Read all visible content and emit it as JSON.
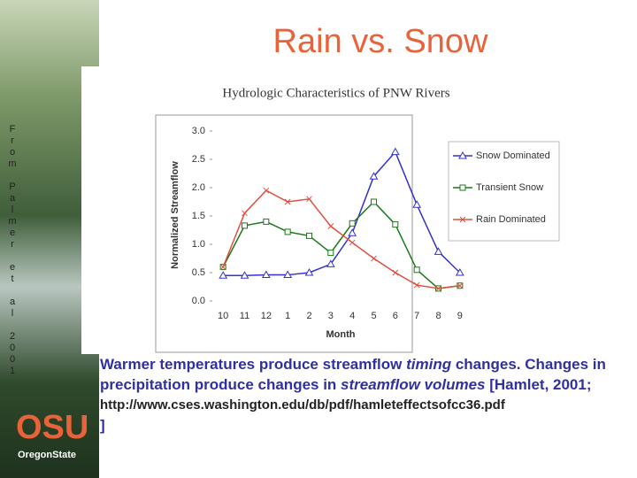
{
  "slide": {
    "title": "Rain vs. Snow",
    "side_text": "From Palmer et al 2001",
    "logo": {
      "mark": "OSU",
      "name": "OregonState"
    },
    "body": {
      "parts": [
        "Warmer temperatures produce streamflow ",
        "timing",
        " changes. Changes in precipitation produce changes in ",
        "streamflow volumes",
        " [Hamlet, 2001;"
      ],
      "url": "http://www.cses.washington.edu/db/pdf/hamleteffectsofcc36.pdf",
      "close": "]"
    }
  },
  "chart_data": {
    "type": "line",
    "title": "Hydrologic Characteristics of PNW Rivers",
    "x_label": "Month",
    "y_label": "Normalized Streamflow",
    "categories": [
      "10",
      "11",
      "12",
      "1",
      "2",
      "3",
      "4",
      "5",
      "6",
      "7",
      "8",
      "9"
    ],
    "ylim": [
      0,
      3
    ],
    "yticks": [
      {
        "value": 0,
        "label": "0.0"
      },
      {
        "value": 0.5,
        "label": "0.5"
      },
      {
        "value": 1,
        "label": "1.0"
      },
      {
        "value": 1.5,
        "label": "1.5"
      },
      {
        "value": 2,
        "label": "2.0"
      },
      {
        "value": 2.5,
        "label": "2.5"
      },
      {
        "value": 3,
        "label": "3.0"
      }
    ],
    "series": [
      {
        "name": "Snow Dominated",
        "color": "#3333cc",
        "marker": "triangle",
        "values": [
          0.45,
          0.45,
          0.46,
          0.46,
          0.5,
          0.65,
          1.2,
          2.2,
          2.63,
          1.7,
          0.87,
          0.5
        ]
      },
      {
        "name": "Transient Snow",
        "color": "#1a7a1a",
        "marker": "square",
        "values": [
          0.6,
          1.33,
          1.4,
          1.22,
          1.15,
          0.85,
          1.37,
          1.75,
          1.35,
          0.55,
          0.22,
          0.27
        ]
      },
      {
        "name": "Rain Dominated",
        "color": "#e05040",
        "marker": "x",
        "values": [
          0.6,
          1.55,
          1.95,
          1.75,
          1.8,
          1.32,
          1.03,
          0.75,
          0.5,
          0.28,
          0.22,
          0.27
        ]
      }
    ]
  }
}
